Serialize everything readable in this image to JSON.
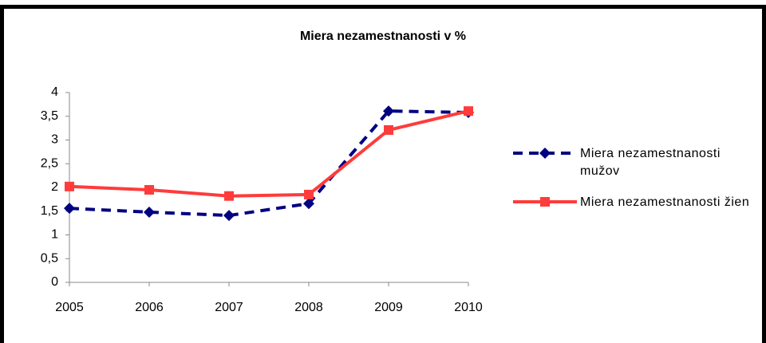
{
  "chart_data": {
    "type": "line",
    "title": "Miera  nezamestnanosti v %",
    "categories": [
      "2005",
      "2006",
      "2007",
      "2008",
      "2009",
      "2010"
    ],
    "series": [
      {
        "name": "Miera nezamestnanosti mužov",
        "color": "#000080",
        "values": [
          1.56,
          1.48,
          1.41,
          1.66,
          3.61,
          3.58
        ]
      },
      {
        "name": "Miera nezamestnanosti žien",
        "color": "#ff3b3b",
        "values": [
          2.02,
          1.95,
          1.82,
          1.85,
          3.21,
          3.61
        ]
      }
    ],
    "ylim": [
      0,
      4
    ],
    "yticks": [
      0,
      {
        "value": 0.5,
        "label": "0,5"
      },
      1,
      {
        "value": 1.5,
        "label": "1,5"
      },
      2,
      {
        "value": 2.5,
        "label": "2,5"
      },
      3,
      {
        "value": 3.5,
        "label": "3,5"
      },
      4
    ],
    "legend": "right"
  }
}
